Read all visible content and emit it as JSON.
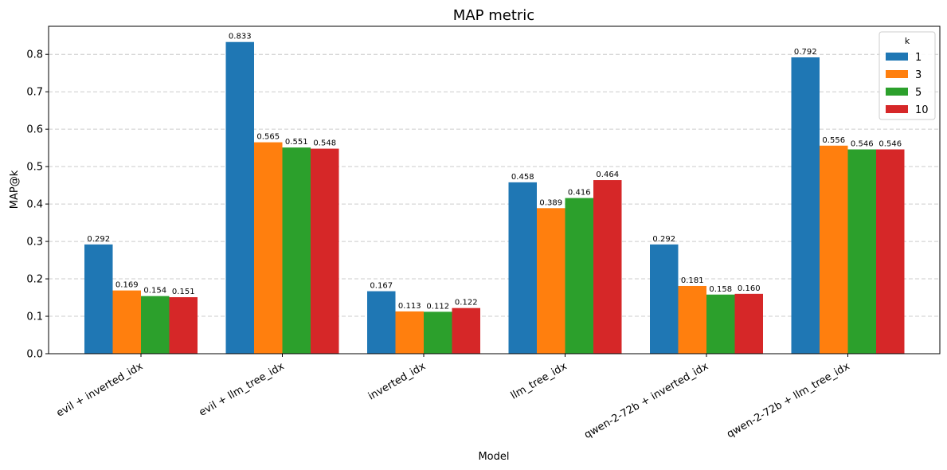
{
  "chart_data": {
    "type": "bar",
    "title": "MAP metric",
    "xlabel": "Model",
    "ylabel": "MAP@k",
    "ylim": [
      0,
      0.875
    ],
    "yticks": [
      "0.0",
      "0.1",
      "0.2",
      "0.3",
      "0.4",
      "0.5",
      "0.6",
      "0.7",
      "0.8"
    ],
    "grid": "y-dashed",
    "legend_title": "k",
    "legend_position": "top-right",
    "categories": [
      "evil + inverted_idx",
      "evil + llm_tree_idx",
      "inverted_idx",
      "llm_tree_idx",
      "qwen-2-72b + inverted_idx",
      "qwen-2-72b + llm_tree_idx"
    ],
    "series": [
      {
        "name": "1",
        "color": "#1f77b4",
        "values": [
          0.292,
          0.833,
          0.167,
          0.458,
          0.292,
          0.792
        ],
        "labels": [
          "0.292",
          "0.833",
          "0.167",
          "0.458",
          "0.292",
          "0.792"
        ]
      },
      {
        "name": "3",
        "color": "#ff7f0e",
        "values": [
          0.169,
          0.565,
          0.113,
          0.389,
          0.181,
          0.556
        ],
        "labels": [
          "0.169",
          "0.565",
          "0.113",
          "0.389",
          "0.181",
          "0.556"
        ]
      },
      {
        "name": "5",
        "color": "#2ca02c",
        "values": [
          0.154,
          0.551,
          0.112,
          0.416,
          0.158,
          0.546
        ],
        "labels": [
          "0.154",
          "0.551",
          "0.112",
          "0.416",
          "0.158",
          "0.546"
        ]
      },
      {
        "name": "10",
        "color": "#d62728",
        "values": [
          0.151,
          0.548,
          0.122,
          0.464,
          0.16,
          0.546
        ],
        "labels": [
          "0.151",
          "0.548",
          "0.122",
          "0.464",
          "0.160",
          "0.546"
        ]
      }
    ]
  }
}
